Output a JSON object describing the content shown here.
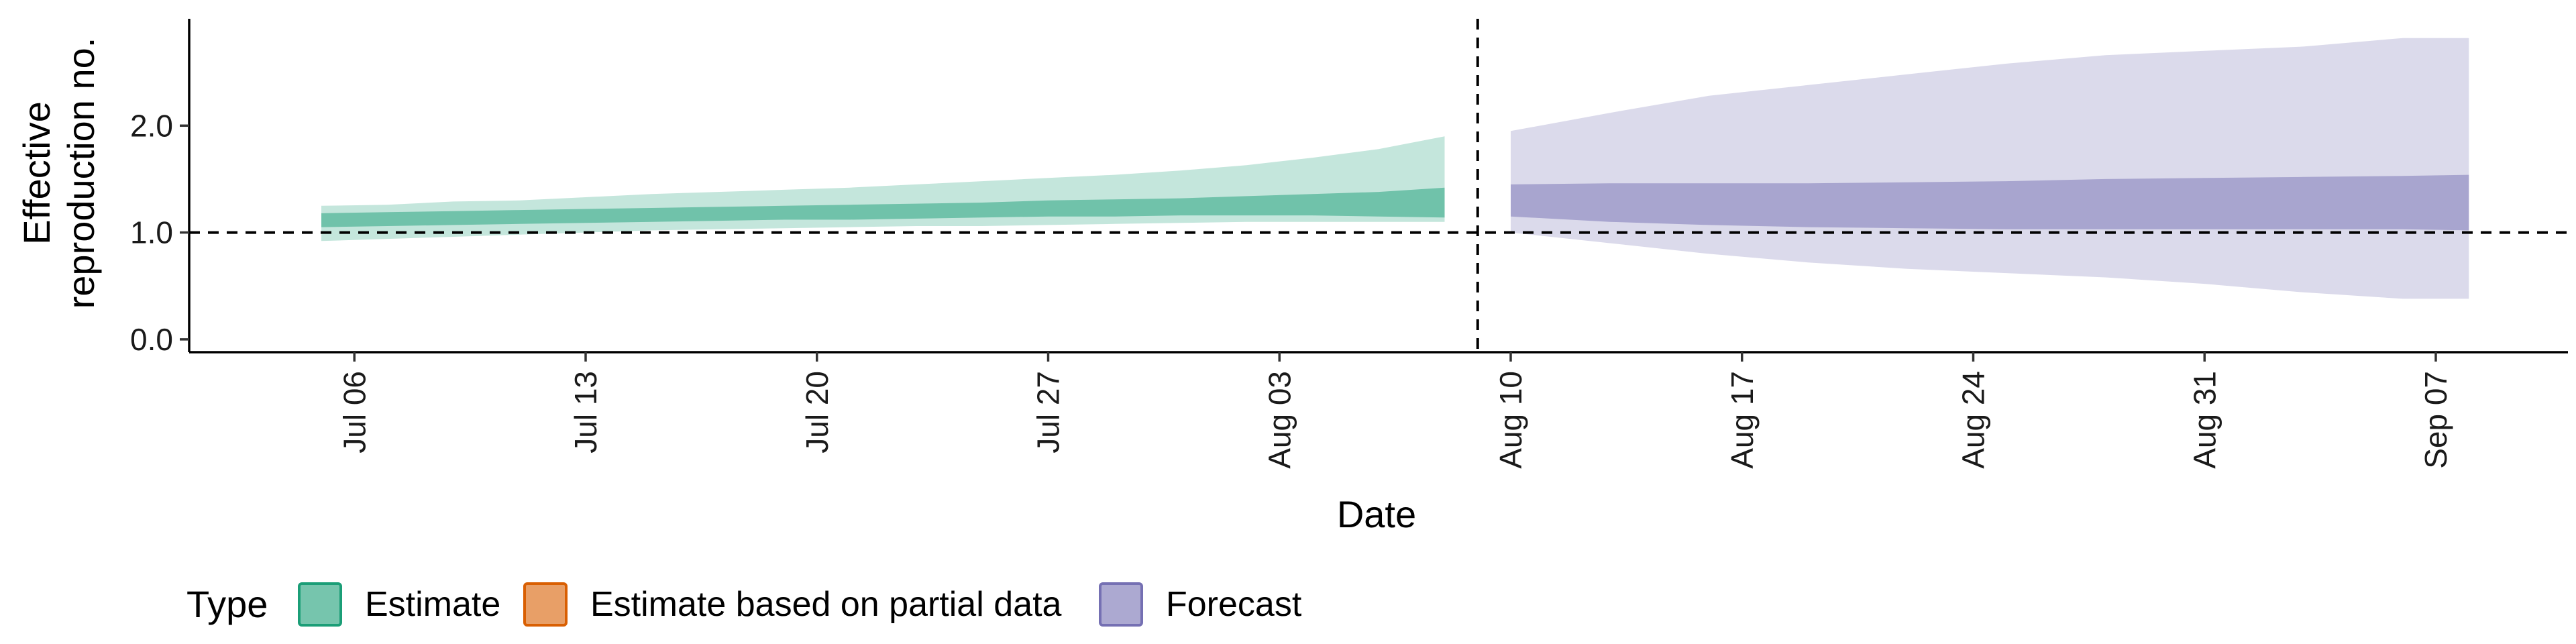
{
  "chart_data": {
    "type": "area",
    "xlabel": "Date",
    "ylabel_lines": [
      "Effective",
      "reproduction no."
    ],
    "x_tick_labels": [
      "Jul 06",
      "Jul 13",
      "Jul 20",
      "Jul 27",
      "Aug 03",
      "Aug 10",
      "Aug 17",
      "Aug 24",
      "Aug 31",
      "Sep 07"
    ],
    "x_tick_dates": [
      "2020-07-06",
      "2020-07-13",
      "2020-07-20",
      "2020-07-27",
      "2020-08-03",
      "2020-08-10",
      "2020-08-17",
      "2020-08-24",
      "2020-08-31",
      "2020-09-07"
    ],
    "x_range": [
      "2020-07-01",
      "2020-09-11"
    ],
    "y_ticks": [
      0.0,
      1.0,
      2.0
    ],
    "y_tick_labels": [
      "0.0",
      "1.0",
      "2.0"
    ],
    "ylim": [
      -0.12,
      3.0
    ],
    "reference_line_y": 1.0,
    "forecast_start_date": "2020-08-09",
    "legend": {
      "title": "Type",
      "position": "bottom",
      "items": [
        {
          "label": "Estimate",
          "color": "#1B9E77"
        },
        {
          "label": "Estimate based on partial data",
          "color": "#D95F02"
        },
        {
          "label": "Forecast",
          "color": "#7570B3"
        }
      ]
    },
    "series": [
      {
        "type": "Estimate",
        "color": "#1B9E77",
        "dates": [
          "2020-07-05",
          "2020-07-07",
          "2020-07-09",
          "2020-07-11",
          "2020-07-13",
          "2020-07-15",
          "2020-07-17",
          "2020-07-19",
          "2020-07-21",
          "2020-07-23",
          "2020-07-25",
          "2020-07-27",
          "2020-07-29",
          "2020-07-31",
          "2020-08-02",
          "2020-08-04",
          "2020-08-06",
          "2020-08-08"
        ],
        "outer_upper": [
          1.25,
          1.26,
          1.29,
          1.3,
          1.33,
          1.36,
          1.38,
          1.4,
          1.42,
          1.45,
          1.48,
          1.51,
          1.54,
          1.58,
          1.63,
          1.7,
          1.78,
          1.9
        ],
        "inner_upper": [
          1.18,
          1.19,
          1.2,
          1.21,
          1.22,
          1.23,
          1.24,
          1.25,
          1.26,
          1.27,
          1.28,
          1.3,
          1.31,
          1.32,
          1.34,
          1.36,
          1.38,
          1.42
        ],
        "inner_lower": [
          1.05,
          1.06,
          1.07,
          1.08,
          1.09,
          1.1,
          1.11,
          1.12,
          1.12,
          1.13,
          1.14,
          1.15,
          1.15,
          1.16,
          1.16,
          1.16,
          1.15,
          1.14
        ],
        "outer_lower": [
          0.92,
          0.94,
          0.96,
          0.98,
          1.0,
          1.02,
          1.03,
          1.04,
          1.05,
          1.06,
          1.06,
          1.07,
          1.08,
          1.09,
          1.1,
          1.1,
          1.1,
          1.1
        ]
      },
      {
        "type": "Forecast",
        "color": "#7570B3",
        "dates": [
          "2020-08-10",
          "2020-08-13",
          "2020-08-16",
          "2020-08-19",
          "2020-08-22",
          "2020-08-25",
          "2020-08-28",
          "2020-08-31",
          "2020-09-03",
          "2020-09-06",
          "2020-09-08"
        ],
        "outer_upper": [
          1.95,
          2.12,
          2.28,
          2.38,
          2.48,
          2.58,
          2.66,
          2.7,
          2.74,
          2.82,
          2.82
        ],
        "inner_upper": [
          1.45,
          1.46,
          1.46,
          1.46,
          1.47,
          1.48,
          1.5,
          1.51,
          1.52,
          1.53,
          1.54
        ],
        "inner_lower": [
          1.15,
          1.1,
          1.07,
          1.05,
          1.04,
          1.03,
          1.03,
          1.03,
          1.03,
          1.03,
          1.02
        ],
        "outer_lower": [
          1.0,
          0.9,
          0.8,
          0.72,
          0.66,
          0.62,
          0.58,
          0.52,
          0.44,
          0.38,
          0.38
        ]
      }
    ]
  }
}
